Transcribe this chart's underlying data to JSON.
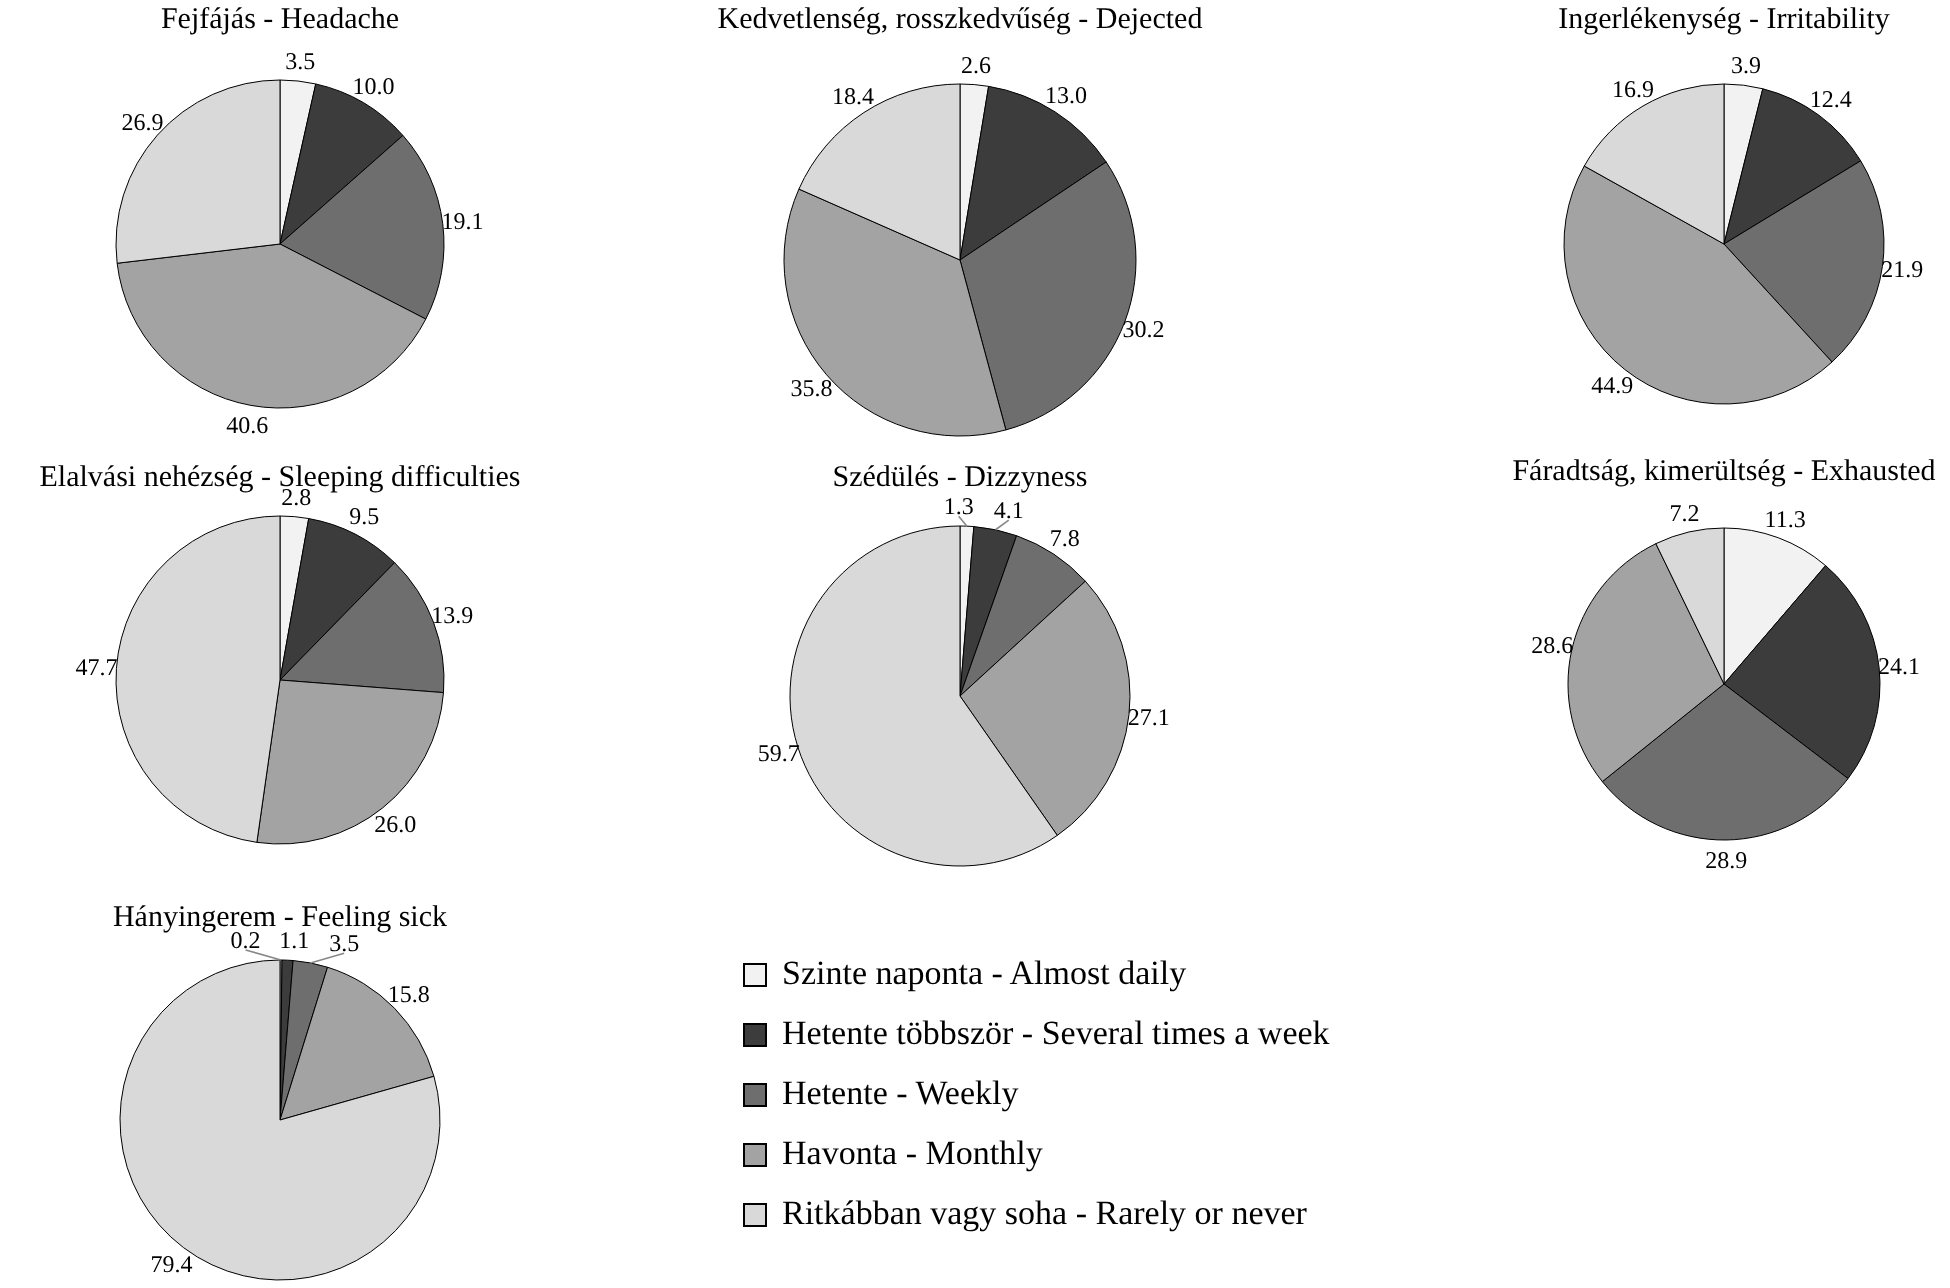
{
  "chart_data": [
    {
      "type": "pie",
      "title": "Fejfájás - Headache",
      "categories": [
        null,
        null,
        null,
        null,
        null
      ],
      "values": [
        3.5,
        10.0,
        19.1,
        40.6,
        26.9
      ],
      "value_labels": [
        "3.5",
        "10.0",
        "19.1",
        "40.6",
        "26.9"
      ],
      "colors": [
        "#f2f2f2",
        "#3c3c3c",
        "#6e6e6e",
        "#a3a3a3",
        "#d9d9d9"
      ]
    },
    {
      "type": "pie",
      "title": "Kedvetlenség, rosszkedvűség - Dejected",
      "categories": [
        null,
        null,
        null,
        null,
        null
      ],
      "values": [
        2.6,
        13.0,
        30.2,
        35.8,
        18.4
      ],
      "value_labels": [
        "2.6",
        "13.0",
        "30.2",
        "35.8",
        "18.4"
      ],
      "colors": [
        "#f2f2f2",
        "#3c3c3c",
        "#6e6e6e",
        "#a3a3a3",
        "#d9d9d9"
      ]
    },
    {
      "type": "pie",
      "title": "Ingerlékenység  - Irritability",
      "categories": [
        null,
        null,
        null,
        null,
        null
      ],
      "values": [
        3.9,
        12.4,
        21.9,
        44.9,
        16.9
      ],
      "value_labels": [
        "3.9",
        "12.4",
        "21.9",
        "44.9",
        "16.9"
      ],
      "colors": [
        "#f2f2f2",
        "#3c3c3c",
        "#6e6e6e",
        "#a3a3a3",
        "#d9d9d9"
      ]
    },
    {
      "type": "pie",
      "title": "Elalvási nehézség - Sleeping difficulties",
      "categories": [
        null,
        null,
        null,
        null,
        null
      ],
      "values": [
        2.8,
        9.5,
        13.9,
        26.0,
        47.7
      ],
      "value_labels": [
        "2.8",
        "9.5",
        "13.9",
        "26.0",
        "47.7"
      ],
      "colors": [
        "#f2f2f2",
        "#3c3c3c",
        "#6e6e6e",
        "#a3a3a3",
        "#d9d9d9"
      ]
    },
    {
      "type": "pie",
      "title": "Szédülés - Dizzyness",
      "categories": [
        null,
        null,
        null,
        null,
        null
      ],
      "values": [
        1.3,
        4.1,
        7.8,
        27.1,
        59.7
      ],
      "value_labels": [
        "1.3",
        "4.1",
        "7.8",
        "27.1",
        "59.7"
      ],
      "colors": [
        "#f2f2f2",
        "#3c3c3c",
        "#6e6e6e",
        "#a3a3a3",
        "#d9d9d9"
      ]
    },
    {
      "type": "pie",
      "title": "Fáradtság, kimerültség - Exhausted",
      "categories": [
        null,
        null,
        null,
        null,
        null
      ],
      "values": [
        11.3,
        24.1,
        28.9,
        28.6,
        7.2
      ],
      "value_labels": [
        "11.3",
        "24.1",
        "28.9",
        "28.6",
        "7.2"
      ],
      "colors": [
        "#f2f2f2",
        "#3c3c3c",
        "#6e6e6e",
        "#a3a3a3",
        "#d9d9d9"
      ]
    },
    {
      "type": "pie",
      "title": "Hányingerem  - Feeling sick",
      "categories": [
        "Szinte naponta - Almost daily",
        "Hetente többször - Several times a week",
        "Hetente - Weekly",
        "Havonta - Monthly",
        "Ritkábban vagy soha - Rarely or never"
      ],
      "values": [
        0.2,
        1.1,
        3.5,
        15.8,
        79.4
      ],
      "value_labels": [
        "0.2",
        "1.1",
        "3.5",
        "15.8",
        "79.4"
      ],
      "colors": [
        "#f2f2f2",
        "#3c3c3c",
        "#6e6e6e",
        "#a3a3a3",
        "#d9d9d9"
      ],
      "legend": "right"
    }
  ]
}
